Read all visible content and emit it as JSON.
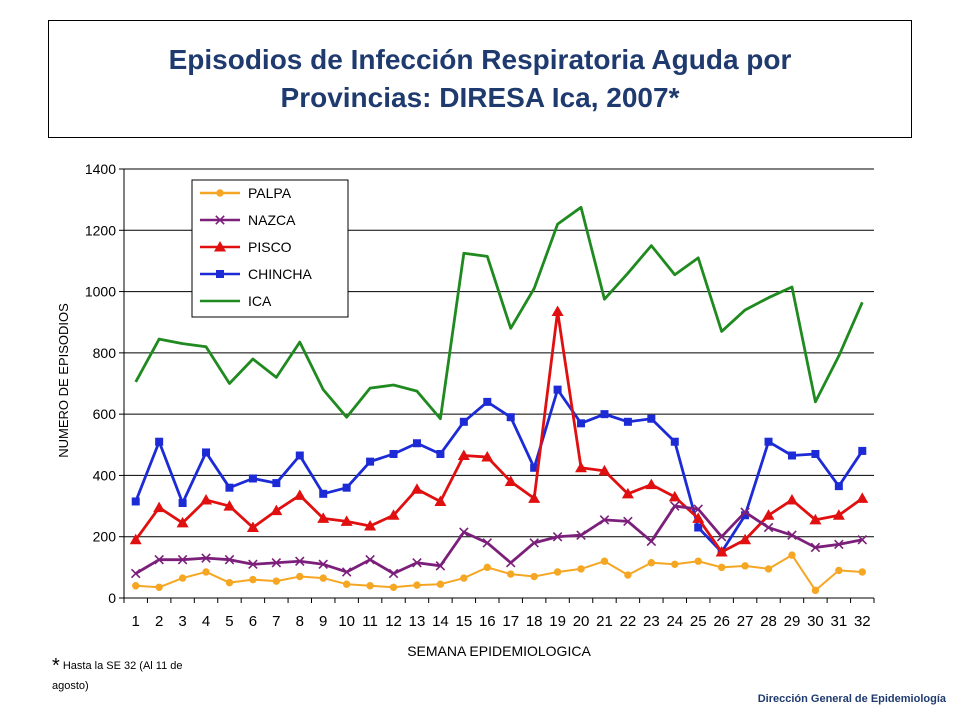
{
  "chart_data": {
    "type": "line",
    "title_line1": "Episodios de Infección Respiratoria Aguda por",
    "title_line2": "Provincias: DIRESA Ica, 2007*",
    "xlabel": "SEMANA EPIDEMIOLOGICA",
    "ylabel": "NUMERO DE EPISODIOS",
    "ylim": [
      0,
      1400
    ],
    "yticks": [
      0,
      200,
      400,
      600,
      800,
      1000,
      1200,
      1400
    ],
    "grid": true,
    "legend_position": "top-left",
    "categories": [
      "1",
      "2",
      "3",
      "4",
      "5",
      "6",
      "7",
      "8",
      "9",
      "10",
      "11",
      "12",
      "13",
      "14",
      "15",
      "16",
      "17",
      "18",
      "19",
      "20",
      "21",
      "22",
      "23",
      "24",
      "25",
      "26",
      "27",
      "28",
      "29",
      "30",
      "31",
      "32"
    ],
    "series": [
      {
        "name": "PALPA",
        "color": "#f5a623",
        "marker": "circle",
        "values": [
          40,
          35,
          65,
          85,
          50,
          60,
          55,
          70,
          65,
          45,
          40,
          35,
          42,
          45,
          65,
          100,
          78,
          70,
          85,
          95,
          120,
          75,
          115,
          110,
          120,
          100,
          105,
          95,
          140,
          25,
          90,
          85
        ]
      },
      {
        "name": "NAZCA",
        "color": "#7b1f7b",
        "marker": "x",
        "values": [
          80,
          125,
          125,
          130,
          125,
          110,
          115,
          120,
          110,
          85,
          125,
          80,
          115,
          105,
          215,
          180,
          115,
          180,
          200,
          205,
          255,
          250,
          185,
          300,
          290,
          200,
          280,
          230,
          205,
          165,
          175,
          190
        ]
      },
      {
        "name": "PISCO",
        "color": "#e01010",
        "marker": "triangle",
        "values": [
          190,
          295,
          245,
          320,
          300,
          230,
          285,
          335,
          260,
          250,
          235,
          270,
          355,
          315,
          465,
          460,
          380,
          325,
          935,
          425,
          415,
          340,
          370,
          330,
          260,
          150,
          190,
          270,
          320,
          255,
          270,
          325
        ]
      },
      {
        "name": "CHINCHA",
        "color": "#1c2bd6",
        "marker": "square",
        "values": [
          315,
          510,
          310,
          475,
          360,
          390,
          375,
          465,
          340,
          360,
          445,
          470,
          505,
          470,
          575,
          640,
          590,
          425,
          680,
          570,
          600,
          575,
          585,
          510,
          230,
          150,
          270,
          510,
          465,
          470,
          365,
          480
        ]
      },
      {
        "name": "ICA",
        "color": "#1f8a1f",
        "marker": "none",
        "values": [
          705,
          845,
          830,
          820,
          700,
          780,
          720,
          835,
          680,
          590,
          685,
          695,
          675,
          585,
          1125,
          1115,
          880,
          1010,
          1220,
          1275,
          975,
          1060,
          1150,
          1055,
          1110,
          870,
          940,
          980,
          1015,
          640,
          790,
          965
        ]
      }
    ]
  },
  "footnote": {
    "star": "*",
    "text": " Hasta la SE 32 (Al 11 de agosto)"
  },
  "credit": "Dirección General de Epidemiología"
}
